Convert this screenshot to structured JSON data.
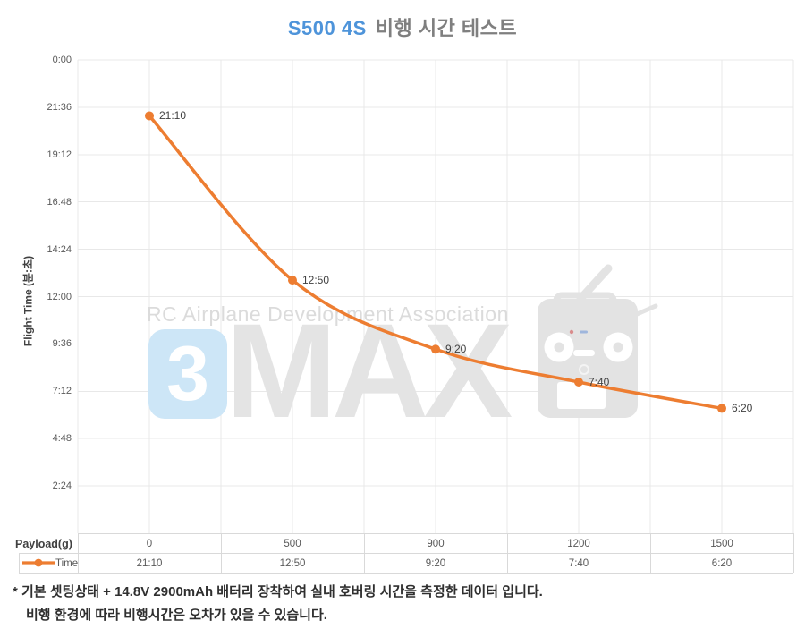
{
  "title": {
    "highlight": "S500 4S",
    "rest": "비행 시간 테스트"
  },
  "y_axis": {
    "label": "Flight Time (분:초)",
    "ticks": [
      "0:00",
      "21:36",
      "19:12",
      "16:48",
      "14:24",
      "12:00",
      "9:36",
      "7:12",
      "4:48",
      "2:24"
    ]
  },
  "table": {
    "header_label": "Payload(g)",
    "series_label": "Time",
    "categories": [
      "0",
      "500",
      "900",
      "1200",
      "1500"
    ],
    "values": [
      "21:10",
      "12:50",
      "9:20",
      "7:40",
      "6:20"
    ]
  },
  "watermark": {
    "text": "RC Airplane Development Association",
    "badge": "3",
    "brand": "MAX",
    "icon": "rc-transmitter-icon"
  },
  "footnotes": [
    "* 기본 셋팅상태 + 14.8V 2900mAh 배터리 장착하여 실내 호버링 시간을 측정한 데이터 입니다.",
    "비행 환경에 따라 비행시간은 오차가 있을 수 있습니다."
  ],
  "colors": {
    "accent_orange": "#ED7D31",
    "title_blue": "#4E94DA",
    "title_gray": "#7F7F7F",
    "gridline": "#E8E8E8",
    "table_border": "#D9D9D9",
    "tick_text": "#595959",
    "label_text": "#404040",
    "watermark_gray": "#E4E4E4",
    "watermark_blue": "#CDE6F7"
  },
  "chart_data": {
    "type": "line",
    "title": "S500 4S 비행 시간 테스트",
    "xlabel": "Payload(g)",
    "ylabel": "Flight Time (분:초)",
    "categories": [
      0,
      500,
      900,
      1200,
      1500
    ],
    "categories_equally_spaced": true,
    "series": [
      {
        "name": "Time",
        "values": [
          "21:10",
          "12:50",
          "9:20",
          "7:40",
          "6:20"
        ],
        "values_seconds": [
          1270,
          770,
          560,
          460,
          380
        ]
      }
    ],
    "data_labels": [
      "21:10",
      "12:50",
      "9:20",
      "7:40",
      "6:20"
    ],
    "y_range_seconds": [
      0,
      1440
    ],
    "y_tick_step_seconds": 144,
    "y_tick_format": "m:ss",
    "grid": true,
    "minor_vertical_grid": true,
    "smooth": true,
    "marker": "circle",
    "legend_position": "data-table"
  }
}
